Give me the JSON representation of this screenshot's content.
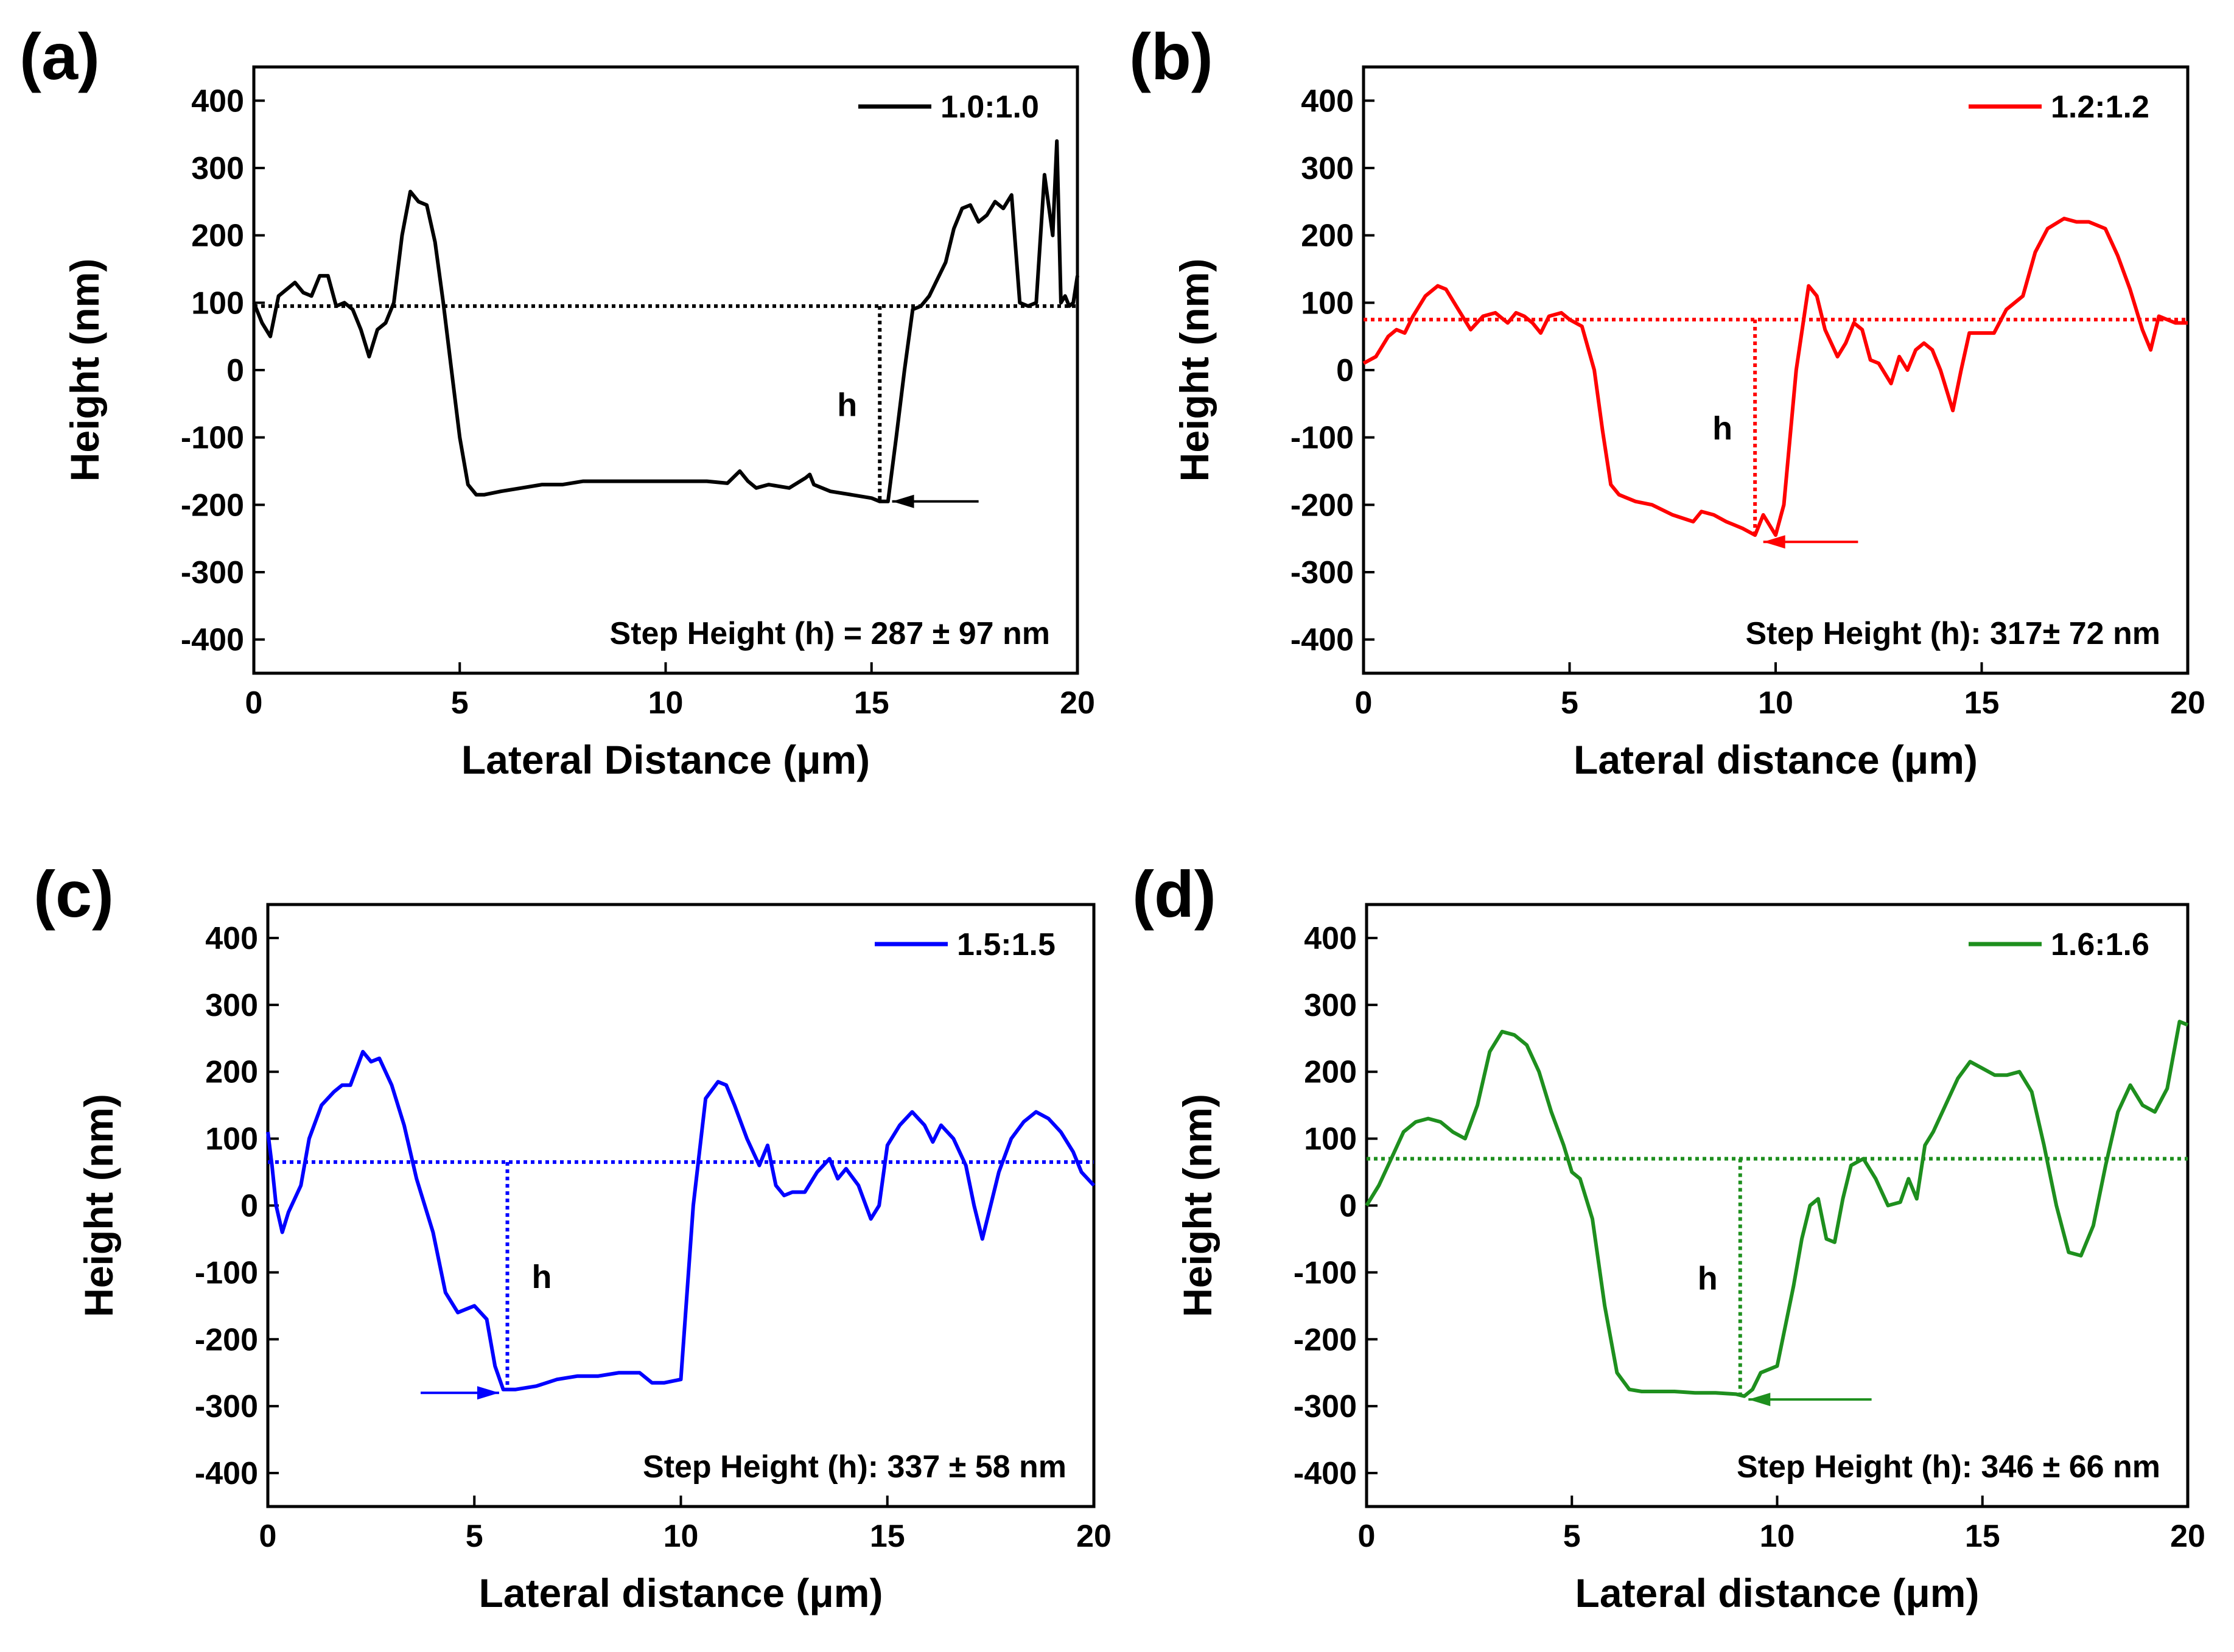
{
  "chart_data": [
    {
      "type": "line",
      "panel_label": "(a)",
      "legend": "1.0:1.0",
      "color": "#000000",
      "xlabel": "Lateral Distance (μm)",
      "ylabel": "Height (nm)",
      "xlim": [
        0,
        20
      ],
      "ylim": [
        -450,
        450
      ],
      "xticks": [
        0,
        5,
        10,
        15,
        20
      ],
      "yticks": [
        -400,
        -300,
        -200,
        -100,
        0,
        100,
        200,
        300,
        400
      ],
      "xtick_labels": [
        "0",
        "5",
        "10",
        "15",
        "20"
      ],
      "ytick_labels": [
        "-400",
        "-300",
        "-200",
        "-100",
        "0",
        "100",
        "200",
        "300",
        "400"
      ],
      "annotation": "Step Height (h) = 287 ± 97 nm",
      "h_label": "h",
      "reference_level": 95,
      "step_x": 15.2,
      "step_bottom": -195,
      "arrow_from_x": 17.6,
      "arrow_to_x": 15.5,
      "arrow_y": -195,
      "x": [
        0,
        0.2,
        0.4,
        0.6,
        0.8,
        1.0,
        1.2,
        1.4,
        1.6,
        1.8,
        2.0,
        2.2,
        2.4,
        2.6,
        2.8,
        3.0,
        3.2,
        3.4,
        3.6,
        3.8,
        4.0,
        4.2,
        4.4,
        4.6,
        4.8,
        5.0,
        5.2,
        5.4,
        5.6,
        6.0,
        6.5,
        7.0,
        7.5,
        8.0,
        8.5,
        9.0,
        9.5,
        10.0,
        10.5,
        11.0,
        11.5,
        11.8,
        12.0,
        12.2,
        12.5,
        13.0,
        13.4,
        13.5,
        13.6,
        14.0,
        14.5,
        15.0,
        15.2,
        15.4,
        15.6,
        15.8,
        16.0,
        16.2,
        16.4,
        16.6,
        16.8,
        17.0,
        17.2,
        17.4,
        17.6,
        17.8,
        18.0,
        18.2,
        18.4,
        18.6,
        18.8,
        19.0,
        19.2,
        19.4,
        19.5,
        19.6,
        19.7,
        19.8,
        19.9,
        20.0
      ],
      "y": [
        100,
        70,
        50,
        110,
        120,
        130,
        115,
        110,
        140,
        140,
        95,
        100,
        90,
        60,
        20,
        60,
        70,
        100,
        200,
        265,
        250,
        245,
        190,
        100,
        0,
        -100,
        -170,
        -185,
        -185,
        -180,
        -175,
        -170,
        -170,
        -165,
        -165,
        -165,
        -165,
        -165,
        -165,
        -165,
        -168,
        -150,
        -165,
        -175,
        -170,
        -175,
        -160,
        -155,
        -170,
        -180,
        -185,
        -190,
        -195,
        -195,
        -100,
        0,
        90,
        95,
        110,
        135,
        160,
        210,
        240,
        245,
        220,
        230,
        250,
        240,
        260,
        100,
        95,
        100,
        290,
        200,
        340,
        100,
        110,
        95,
        100,
        140
      ]
    },
    {
      "type": "line",
      "panel_label": "(b)",
      "legend": "1.2:1.2",
      "color": "#ff0000",
      "xlabel": "Lateral distance (μm)",
      "ylabel": "Height (nm)",
      "xlim": [
        0,
        20
      ],
      "ylim": [
        -450,
        450
      ],
      "xticks": [
        0,
        5,
        10,
        15,
        20
      ],
      "yticks": [
        -400,
        -300,
        -200,
        -100,
        0,
        100,
        200,
        300,
        400
      ],
      "xtick_labels": [
        "0",
        "5",
        "10",
        "15",
        "20"
      ],
      "ytick_labels": [
        "-400",
        "-300",
        "-200",
        "-100",
        "0",
        "100",
        "200",
        "300",
        "400"
      ],
      "annotation": "Step Height (h): 317± 72 nm",
      "h_label": "h",
      "reference_level": 75,
      "step_x": 9.5,
      "step_bottom": -245,
      "arrow_from_x": 12.0,
      "arrow_to_x": 9.7,
      "arrow_y": -255,
      "x": [
        0,
        0.3,
        0.6,
        0.8,
        1.0,
        1.2,
        1.5,
        1.8,
        2.0,
        2.3,
        2.6,
        2.9,
        3.2,
        3.5,
        3.7,
        3.9,
        4.1,
        4.3,
        4.5,
        4.8,
        5.0,
        5.3,
        5.6,
        5.8,
        6.0,
        6.2,
        6.4,
        6.6,
        7.0,
        7.5,
        8.0,
        8.2,
        8.5,
        8.8,
        9.0,
        9.2,
        9.5,
        9.7,
        10.0,
        10.2,
        10.5,
        10.8,
        11.0,
        11.2,
        11.5,
        11.7,
        11.9,
        12.1,
        12.3,
        12.5,
        12.8,
        13.0,
        13.2,
        13.4,
        13.6,
        13.8,
        14.0,
        14.3,
        14.5,
        14.7,
        15.0,
        15.3,
        15.6,
        16.0,
        16.3,
        16.6,
        17.0,
        17.3,
        17.6,
        18.0,
        18.3,
        18.6,
        18.9,
        19.1,
        19.3,
        19.5,
        19.7,
        20.0
      ],
      "y": [
        10,
        20,
        50,
        60,
        55,
        80,
        110,
        125,
        120,
        90,
        60,
        80,
        85,
        70,
        85,
        80,
        70,
        55,
        80,
        85,
        75,
        65,
        0,
        -90,
        -170,
        -185,
        -190,
        -195,
        -200,
        -215,
        -225,
        -210,
        -215,
        -225,
        -230,
        -235,
        -245,
        -215,
        -245,
        -200,
        0,
        125,
        110,
        60,
        20,
        40,
        70,
        60,
        15,
        10,
        -20,
        20,
        0,
        30,
        40,
        30,
        0,
        -60,
        0,
        55,
        55,
        55,
        90,
        110,
        175,
        210,
        225,
        220,
        220,
        210,
        170,
        120,
        60,
        30,
        80,
        75,
        70,
        70
      ]
    },
    {
      "type": "line",
      "panel_label": "(c)",
      "legend": "1.5:1.5",
      "color": "#0000ff",
      "xlabel": "Lateral distance (μm)",
      "ylabel": "Height (nm)",
      "xlim": [
        0,
        20
      ],
      "ylim": [
        -450,
        450
      ],
      "xticks": [
        0,
        5,
        10,
        15,
        20
      ],
      "yticks": [
        -400,
        -300,
        -200,
        -100,
        0,
        100,
        200,
        300,
        400
      ],
      "xtick_labels": [
        "0",
        "5",
        "10",
        "15",
        "20"
      ],
      "ytick_labels": [
        "-400",
        "-300",
        "-200",
        "-100",
        "0",
        "100",
        "200",
        "300",
        "400"
      ],
      "annotation": "Step Height (h): 337 ± 58 nm",
      "h_label": "h",
      "reference_level": 65,
      "step_x": 5.8,
      "step_bottom": -275,
      "arrow_from_x": 3.7,
      "arrow_to_x": 5.6,
      "arrow_y": -280,
      "x": [
        0,
        0.1,
        0.2,
        0.35,
        0.5,
        0.8,
        1.0,
        1.3,
        1.6,
        1.8,
        2.0,
        2.3,
        2.5,
        2.7,
        3.0,
        3.3,
        3.6,
        4.0,
        4.3,
        4.6,
        5.0,
        5.3,
        5.5,
        5.7,
        5.8,
        6.0,
        6.5,
        7.0,
        7.5,
        8.0,
        8.5,
        9.0,
        9.3,
        9.6,
        10.0,
        10.3,
        10.6,
        10.9,
        11.1,
        11.3,
        11.6,
        11.9,
        12.1,
        12.3,
        12.5,
        12.7,
        13.0,
        13.3,
        13.6,
        13.8,
        14.0,
        14.3,
        14.6,
        14.8,
        15.0,
        15.3,
        15.6,
        15.9,
        16.1,
        16.3,
        16.6,
        16.9,
        17.1,
        17.3,
        17.5,
        17.7,
        18.0,
        18.3,
        18.6,
        18.9,
        19.2,
        19.5,
        19.7,
        20.0
      ],
      "y": [
        110,
        60,
        0,
        -40,
        -10,
        30,
        100,
        150,
        170,
        180,
        180,
        230,
        215,
        220,
        180,
        120,
        40,
        -40,
        -130,
        -160,
        -150,
        -170,
        -240,
        -275,
        -275,
        -275,
        -270,
        -260,
        -255,
        -255,
        -250,
        -250,
        -265,
        -265,
        -260,
        0,
        160,
        185,
        180,
        150,
        100,
        60,
        90,
        30,
        15,
        20,
        20,
        50,
        70,
        40,
        55,
        30,
        -20,
        0,
        90,
        120,
        140,
        120,
        95,
        120,
        100,
        60,
        0,
        -50,
        0,
        50,
        100,
        125,
        140,
        130,
        110,
        80,
        50,
        30
      ]
    },
    {
      "type": "line",
      "panel_label": "(d)",
      "legend": "1.6:1.6",
      "color": "#1e8f1e",
      "xlabel": "Lateral distance (μm)",
      "ylabel": "Height (nm)",
      "xlim": [
        0,
        20
      ],
      "ylim": [
        -450,
        450
      ],
      "xticks": [
        0,
        5,
        10,
        15,
        20
      ],
      "yticks": [
        -400,
        -300,
        -200,
        -100,
        0,
        100,
        200,
        300,
        400
      ],
      "xtick_labels": [
        "0",
        "5",
        "10",
        "15",
        "20"
      ],
      "ytick_labels": [
        "-400",
        "-300",
        "-200",
        "-100",
        "0",
        "100",
        "200",
        "300",
        "400"
      ],
      "annotation": "Step Height (h): 346 ± 66 nm",
      "h_label": "h",
      "reference_level": 70,
      "step_x": 9.1,
      "step_bottom": -285,
      "arrow_from_x": 12.3,
      "arrow_to_x": 9.3,
      "arrow_y": -290,
      "x": [
        0,
        0.3,
        0.6,
        0.9,
        1.2,
        1.5,
        1.8,
        2.1,
        2.4,
        2.7,
        3.0,
        3.3,
        3.6,
        3.9,
        4.2,
        4.5,
        4.8,
        5.0,
        5.2,
        5.5,
        5.8,
        6.1,
        6.4,
        6.7,
        7.0,
        7.5,
        8.0,
        8.5,
        9.0,
        9.2,
        9.4,
        9.6,
        9.8,
        10.0,
        10.2,
        10.4,
        10.6,
        10.8,
        11.0,
        11.2,
        11.4,
        11.6,
        11.8,
        12.1,
        12.4,
        12.7,
        13.0,
        13.2,
        13.4,
        13.6,
        13.8,
        14.1,
        14.4,
        14.7,
        15.0,
        15.3,
        15.6,
        15.9,
        16.2,
        16.5,
        16.8,
        17.1,
        17.4,
        17.7,
        18.0,
        18.3,
        18.6,
        18.9,
        19.2,
        19.5,
        19.8,
        20.0
      ],
      "y": [
        0,
        30,
        70,
        110,
        125,
        130,
        125,
        110,
        100,
        150,
        230,
        260,
        255,
        240,
        200,
        140,
        90,
        50,
        40,
        -20,
        -150,
        -250,
        -275,
        -278,
        -278,
        -278,
        -280,
        -280,
        -282,
        -285,
        -275,
        -250,
        -245,
        -240,
        -180,
        -120,
        -50,
        0,
        10,
        -50,
        -55,
        10,
        60,
        70,
        40,
        0,
        5,
        40,
        10,
        90,
        110,
        150,
        190,
        215,
        205,
        195,
        195,
        200,
        170,
        90,
        0,
        -70,
        -75,
        -30,
        60,
        140,
        180,
        150,
        140,
        175,
        275,
        270
      ]
    }
  ]
}
